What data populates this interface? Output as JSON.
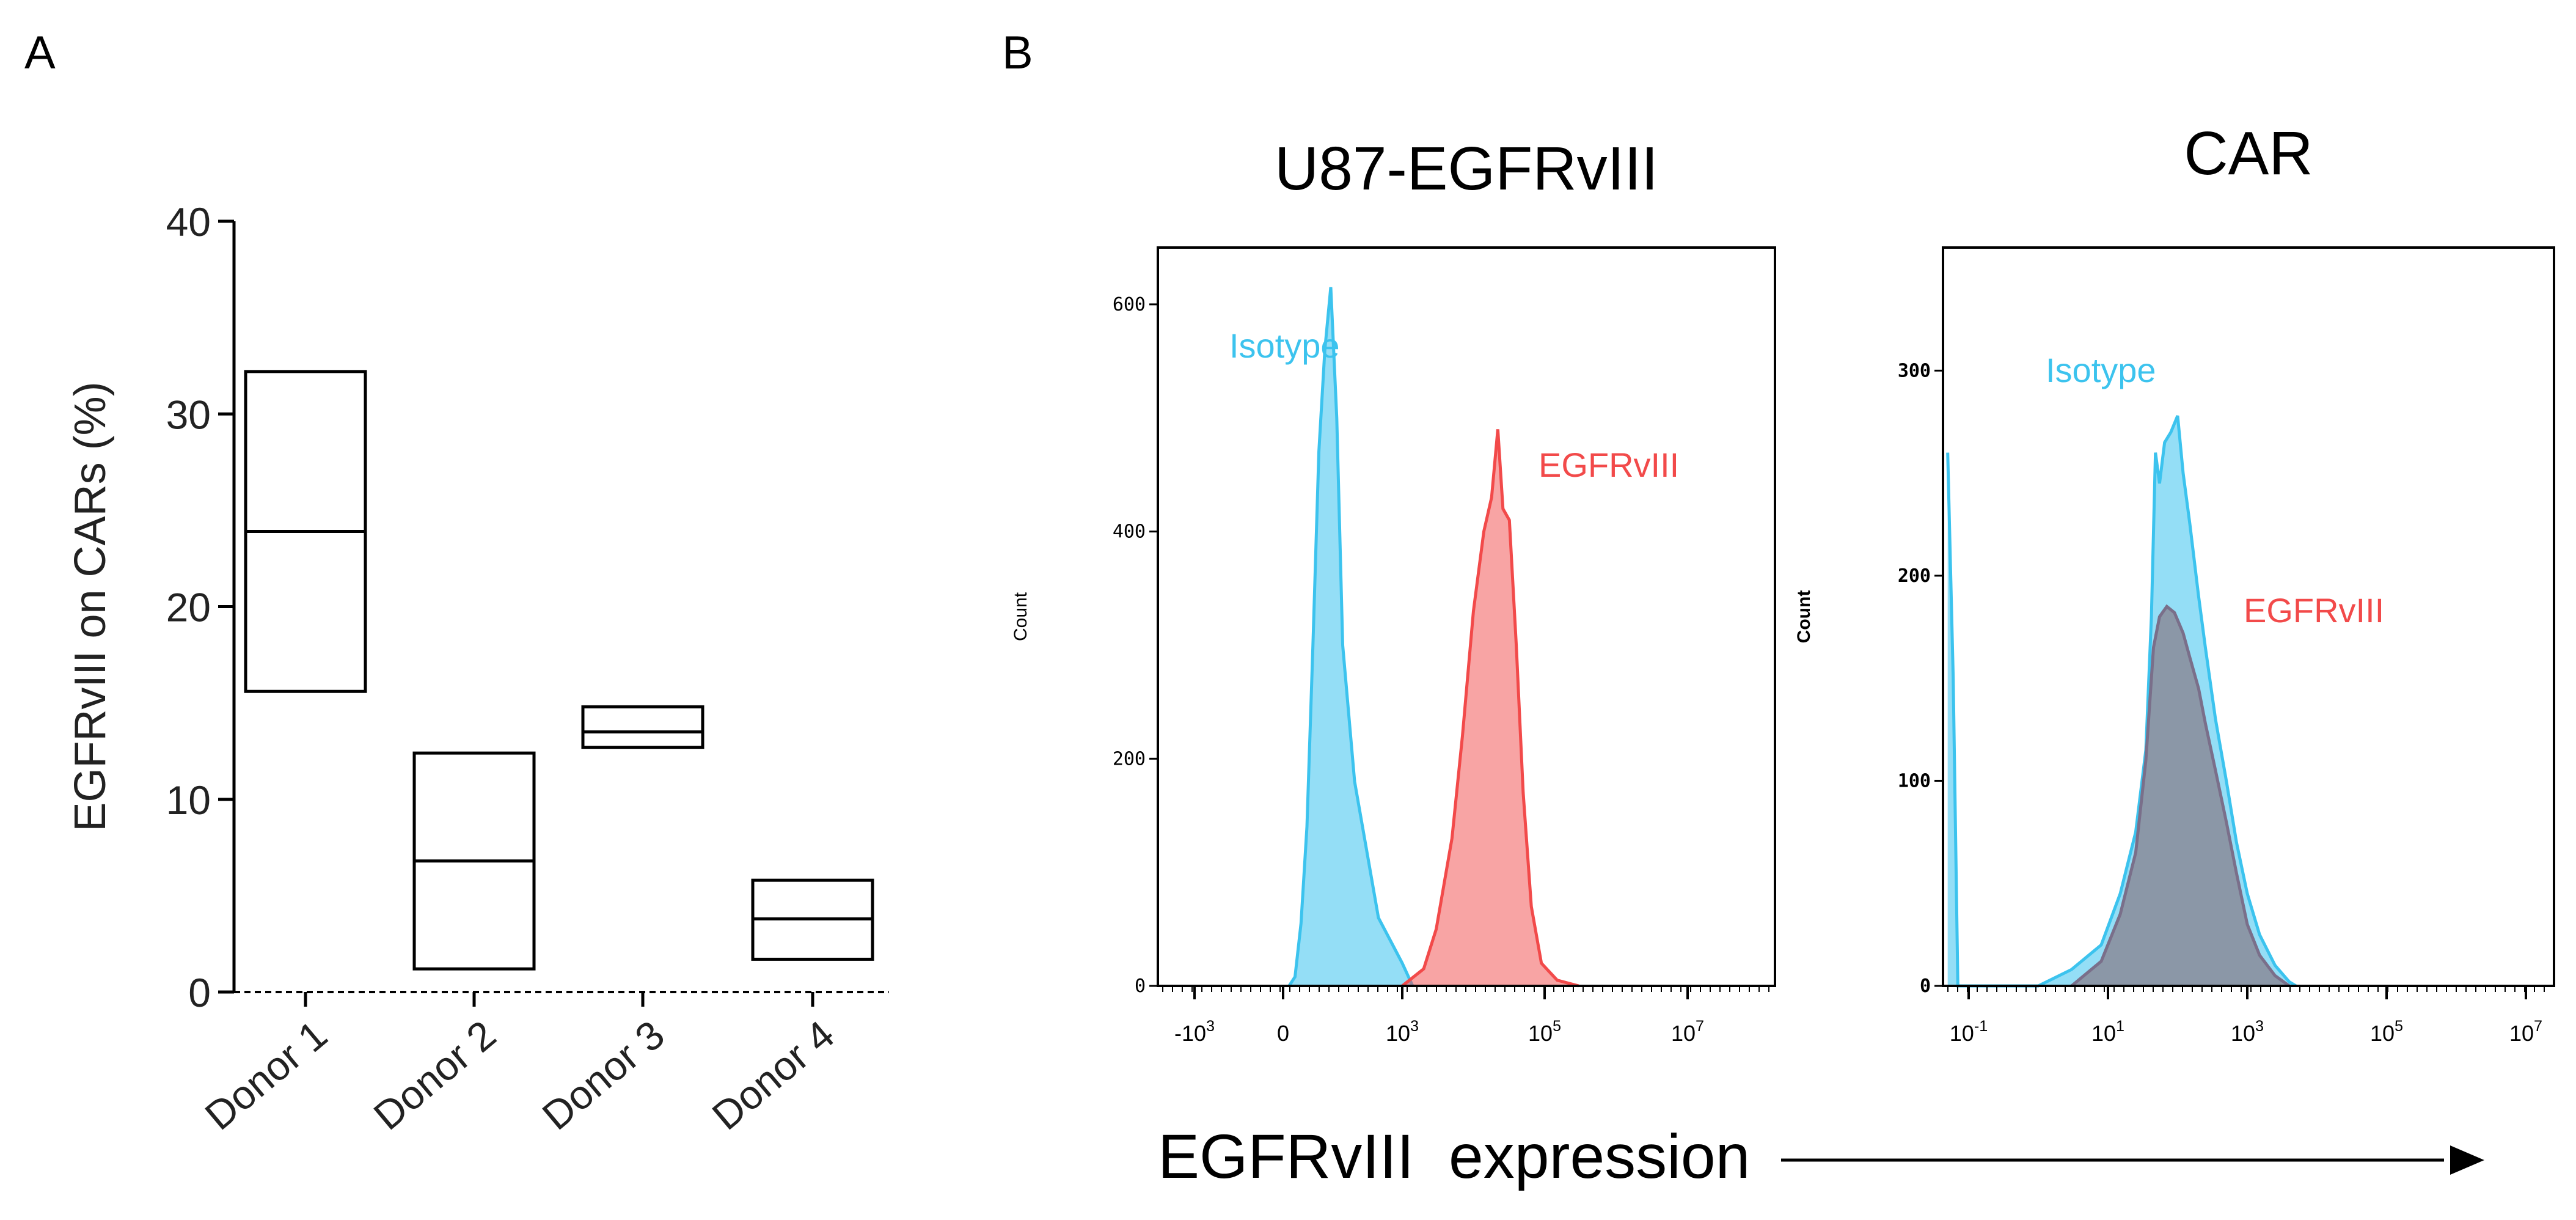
{
  "panels": {
    "a_label": "A",
    "b_label": "B"
  },
  "colors": {
    "isotype": "#3cc3ee",
    "egfrviii": "#f24a4a",
    "car_egfr_fill": "#8a8f9e",
    "car_egfr_line": "#7a6f8a",
    "axis": "#000000"
  },
  "chart_data": [
    {
      "id": "A",
      "type": "box",
      "ylabel": "EGFRvIII on CARs (%)",
      "ylim": [
        0,
        40
      ],
      "yticks": [
        "0",
        "10",
        "20",
        "30",
        "40"
      ],
      "ytick_values": [
        0,
        10,
        20,
        30,
        40
      ],
      "categories": [
        "Donor 1",
        "Donor 2",
        "Donor 3",
        "Donor 4"
      ],
      "boxes": [
        {
          "min": 15.6,
          "median": 23.9,
          "max": 32.2
        },
        {
          "min": 1.2,
          "median": 6.8,
          "max": 12.4
        },
        {
          "min": 12.7,
          "median": 13.5,
          "max": 14.8
        },
        {
          "min": 1.7,
          "median": 3.8,
          "max": 5.8
        }
      ],
      "baseline_dotted": true
    },
    {
      "id": "B1",
      "type": "histogram",
      "title": "U87-EGFRvIII",
      "ylabel": "Count",
      "yticks": [
        "0",
        "200",
        "400",
        "600"
      ],
      "ytick_values": [
        0,
        200,
        400,
        600
      ],
      "ylim": [
        0,
        650
      ],
      "xscale": "biexponential",
      "xticks": [
        {
          "base": "-10",
          "exp": "3",
          "value": -1000
        },
        {
          "base": "0",
          "exp": "",
          "value": 0
        },
        {
          "base": "10",
          "exp": "3",
          "value": 1000
        },
        {
          "base": "10",
          "exp": "5",
          "value": 100000
        },
        {
          "base": "10",
          "exp": "7",
          "value": 10000000
        }
      ],
      "series": [
        {
          "name": "Isotype",
          "color": "#3cc3ee",
          "points": [
            [
              50,
              0
            ],
            [
              100,
              8
            ],
            [
              150,
              55
            ],
            [
              200,
              140
            ],
            [
              250,
              300
            ],
            [
              300,
              470
            ],
            [
              350,
              560
            ],
            [
              400,
              615
            ],
            [
              450,
              500
            ],
            [
              500,
              300
            ],
            [
              600,
              180
            ],
            [
              700,
              120
            ],
            [
              800,
              60
            ],
            [
              1000,
              20
            ],
            [
              1400,
              0
            ]
          ]
        },
        {
          "name": "EGFRvIII",
          "color": "#f24a4a",
          "points": [
            [
              1000,
              0
            ],
            [
              2000,
              15
            ],
            [
              3000,
              50
            ],
            [
              5000,
              130
            ],
            [
              7000,
              220
            ],
            [
              10000,
              330
            ],
            [
              14000,
              400
            ],
            [
              18000,
              430
            ],
            [
              22000,
              490
            ],
            [
              26000,
              420
            ],
            [
              32000,
              410
            ],
            [
              40000,
              300
            ],
            [
              50000,
              170
            ],
            [
              65000,
              70
            ],
            [
              90000,
              20
            ],
            [
              150000,
              5
            ],
            [
              300000,
              0
            ]
          ]
        }
      ]
    },
    {
      "id": "B2",
      "type": "histogram",
      "title": "CAR",
      "ylabel": "Count",
      "yticks": [
        "0",
        "100",
        "200",
        "300"
      ],
      "ytick_values": [
        0,
        100,
        200,
        300
      ],
      "ylim": [
        0,
        360
      ],
      "xscale": "log",
      "xlim": [
        0.05,
        50000000
      ],
      "xticks": [
        {
          "base": "10",
          "exp": "-1",
          "value": 0.1
        },
        {
          "base": "10",
          "exp": "1",
          "value": 10
        },
        {
          "base": "10",
          "exp": "3",
          "value": 1000
        },
        {
          "base": "10",
          "exp": "5",
          "value": 100000
        },
        {
          "base": "10",
          "exp": "7",
          "value": 10000000
        }
      ],
      "series": [
        {
          "name": "Isotype",
          "color": "#3cc3ee",
          "points": [
            [
              0.05,
              260
            ],
            [
              0.06,
              150
            ],
            [
              0.07,
              0
            ],
            [
              1,
              0
            ],
            [
              3,
              8
            ],
            [
              8,
              20
            ],
            [
              15,
              45
            ],
            [
              25,
              75
            ],
            [
              35,
              115
            ],
            [
              42,
              180
            ],
            [
              48,
              260
            ],
            [
              55,
              245
            ],
            [
              65,
              265
            ],
            [
              80,
              270
            ],
            [
              100,
              278
            ],
            [
              120,
              250
            ],
            [
              150,
              225
            ],
            [
              200,
              190
            ],
            [
              250,
              165
            ],
            [
              350,
              130
            ],
            [
              500,
              100
            ],
            [
              700,
              70
            ],
            [
              1000,
              45
            ],
            [
              1500,
              25
            ],
            [
              2500,
              10
            ],
            [
              4000,
              2
            ],
            [
              5000,
              0
            ]
          ]
        },
        {
          "name": "EGFRvIII",
          "color": "#7a6f8a",
          "points": [
            [
              3,
              0
            ],
            [
              8,
              12
            ],
            [
              15,
              35
            ],
            [
              25,
              65
            ],
            [
              35,
              110
            ],
            [
              45,
              165
            ],
            [
              55,
              180
            ],
            [
              70,
              185
            ],
            [
              90,
              182
            ],
            [
              120,
              172
            ],
            [
              150,
              160
            ],
            [
              200,
              145
            ],
            [
              250,
              128
            ],
            [
              350,
              105
            ],
            [
              500,
              80
            ],
            [
              700,
              55
            ],
            [
              1000,
              30
            ],
            [
              1500,
              15
            ],
            [
              2500,
              5
            ],
            [
              4000,
              0
            ]
          ]
        }
      ]
    }
  ],
  "xlabel_shared": "EGFRvIII  expression"
}
